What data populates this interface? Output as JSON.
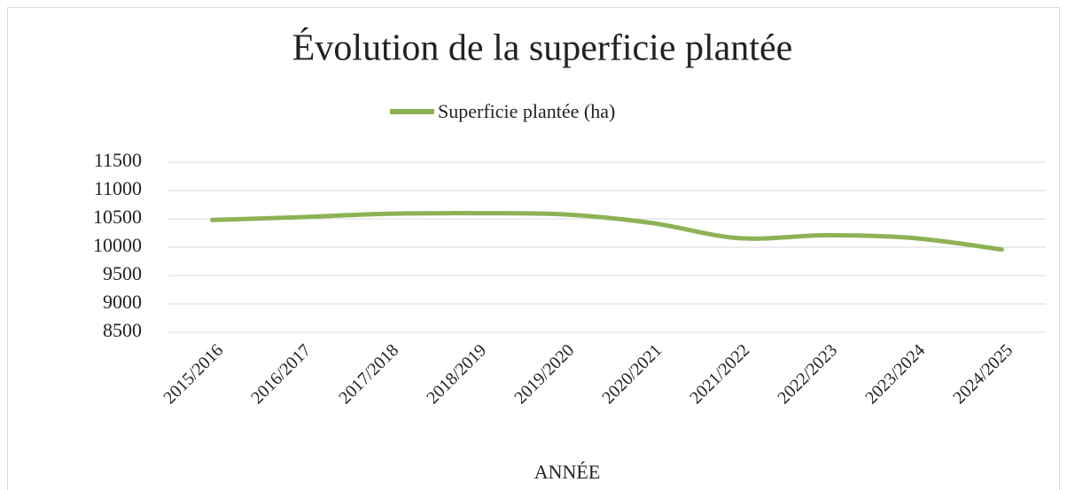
{
  "chart_data": {
    "type": "line",
    "title": "Évolution de la superficie plantée",
    "x_label": "ANNÉE",
    "categories": [
      "2015/2016",
      "2016/2017",
      "2017/2018",
      "2018/2019",
      "2019/2020",
      "2020/2021",
      "2021/2022",
      "2022/2023",
      "2023/2024",
      "2024/2025"
    ],
    "series": [
      {
        "name": "Superficie plantée (ha)",
        "color": "#8db255",
        "values": [
          10480,
          10530,
          10590,
          10600,
          10580,
          10430,
          10160,
          10210,
          10160,
          9960
        ]
      }
    ],
    "ylim": [
      8500,
      11500
    ],
    "yticks": [
      8500,
      9000,
      9500,
      10000,
      10500,
      11000,
      11500
    ],
    "grid": true,
    "legend": "top"
  }
}
